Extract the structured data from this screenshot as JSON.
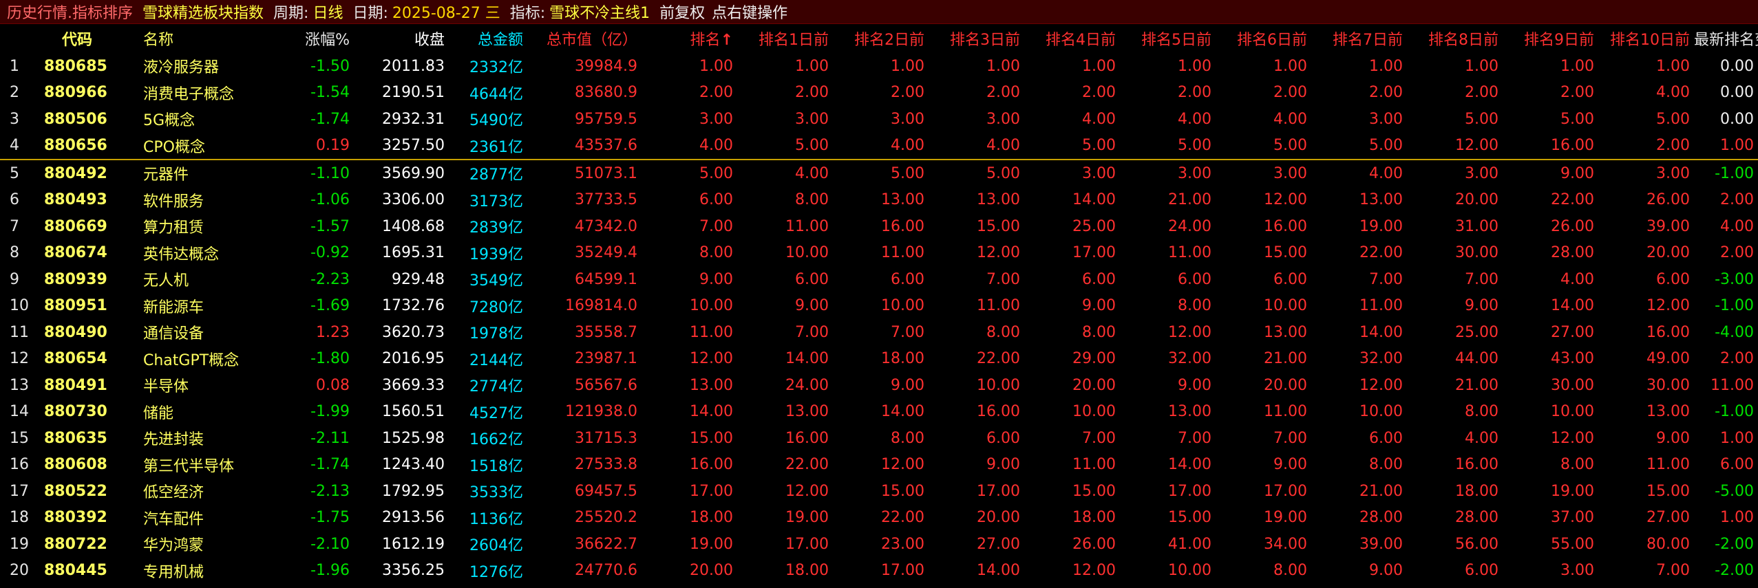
{
  "titlebar": {
    "path": "历史行情.指标排序",
    "block": "雪球精选板块指数",
    "period_label": "周期:",
    "period_value": "日线",
    "date_label": "日期:",
    "date_value": "2025-08-27 三",
    "indicator_label": "指标:",
    "indicator_value": "雪球不冷主线1",
    "adjust": "前复权",
    "hint": "点右键操作"
  },
  "columns": {
    "code": "代码",
    "name": "名称",
    "change": "涨幅%",
    "close": "收盘",
    "amount": "总金额",
    "mcap": "总市值（亿）",
    "rank": "排名",
    "rank_sort_icon": "↑",
    "r1": "排名1日前",
    "r2": "排名2日前",
    "r3": "排名3日前",
    "r4": "排名4日前",
    "r5": "排名5日前",
    "r6": "排名6日前",
    "r7": "排名7日前",
    "r8": "排名8日前",
    "r9": "排名9日前",
    "r10": "排名10日前",
    "rank_change": "最新排名变动"
  },
  "rows": [
    {
      "idx": "1",
      "code": "880685",
      "name": "液冷服务器",
      "chg": "-1.50",
      "close": "2011.83",
      "amt": "2332亿",
      "cap": "39984.9",
      "rank": "1.00",
      "r1": "1.00",
      "r2": "1.00",
      "r3": "1.00",
      "r4": "1.00",
      "r5": "1.00",
      "r6": "1.00",
      "r7": "1.00",
      "r8": "1.00",
      "r9": "1.00",
      "r10": "1.00",
      "delta": "0.00"
    },
    {
      "idx": "2",
      "code": "880966",
      "name": "消费电子概念",
      "chg": "-1.54",
      "close": "2190.51",
      "amt": "4644亿",
      "cap": "83680.9",
      "rank": "2.00",
      "r1": "2.00",
      "r2": "2.00",
      "r3": "2.00",
      "r4": "2.00",
      "r5": "2.00",
      "r6": "2.00",
      "r7": "2.00",
      "r8": "2.00",
      "r9": "2.00",
      "r10": "4.00",
      "delta": "0.00"
    },
    {
      "idx": "3",
      "code": "880506",
      "name": "5G概念",
      "chg": "-1.74",
      "close": "2932.31",
      "amt": "5490亿",
      "cap": "95759.5",
      "rank": "3.00",
      "r1": "3.00",
      "r2": "3.00",
      "r3": "3.00",
      "r4": "4.00",
      "r5": "4.00",
      "r6": "4.00",
      "r7": "3.00",
      "r8": "5.00",
      "r9": "5.00",
      "r10": "5.00",
      "delta": "0.00"
    },
    {
      "idx": "4",
      "code": "880656",
      "name": "CPO概念",
      "chg": "0.19",
      "close": "3257.50",
      "amt": "2361亿",
      "cap": "43537.6",
      "rank": "4.00",
      "r1": "5.00",
      "r2": "4.00",
      "r3": "4.00",
      "r4": "5.00",
      "r5": "5.00",
      "r6": "5.00",
      "r7": "5.00",
      "r8": "12.00",
      "r9": "16.00",
      "r10": "2.00",
      "delta": "1.00"
    },
    {
      "idx": "5",
      "code": "880492",
      "name": "元器件",
      "chg": "-1.10",
      "close": "3569.90",
      "amt": "2877亿",
      "cap": "51073.1",
      "rank": "5.00",
      "r1": "4.00",
      "r2": "5.00",
      "r3": "5.00",
      "r4": "3.00",
      "r5": "3.00",
      "r6": "3.00",
      "r7": "4.00",
      "r8": "3.00",
      "r9": "9.00",
      "r10": "3.00",
      "delta": "-1.00"
    },
    {
      "idx": "6",
      "code": "880493",
      "name": "软件服务",
      "chg": "-1.06",
      "close": "3306.00",
      "amt": "3173亿",
      "cap": "37733.5",
      "rank": "6.00",
      "r1": "8.00",
      "r2": "13.00",
      "r3": "13.00",
      "r4": "14.00",
      "r5": "21.00",
      "r6": "12.00",
      "r7": "13.00",
      "r8": "20.00",
      "r9": "22.00",
      "r10": "26.00",
      "delta": "2.00"
    },
    {
      "idx": "7",
      "code": "880669",
      "name": "算力租赁",
      "chg": "-1.57",
      "close": "1408.68",
      "amt": "2839亿",
      "cap": "47342.0",
      "rank": "7.00",
      "r1": "11.00",
      "r2": "16.00",
      "r3": "15.00",
      "r4": "25.00",
      "r5": "24.00",
      "r6": "16.00",
      "r7": "19.00",
      "r8": "31.00",
      "r9": "26.00",
      "r10": "39.00",
      "delta": "4.00"
    },
    {
      "idx": "8",
      "code": "880674",
      "name": "英伟达概念",
      "chg": "-0.92",
      "close": "1695.31",
      "amt": "1939亿",
      "cap": "35249.4",
      "rank": "8.00",
      "r1": "10.00",
      "r2": "11.00",
      "r3": "12.00",
      "r4": "17.00",
      "r5": "11.00",
      "r6": "15.00",
      "r7": "22.00",
      "r8": "30.00",
      "r9": "28.00",
      "r10": "20.00",
      "delta": "2.00"
    },
    {
      "idx": "9",
      "code": "880939",
      "name": "无人机",
      "chg": "-2.23",
      "close": "929.48",
      "amt": "3549亿",
      "cap": "64599.1",
      "rank": "9.00",
      "r1": "6.00",
      "r2": "6.00",
      "r3": "7.00",
      "r4": "6.00",
      "r5": "6.00",
      "r6": "6.00",
      "r7": "7.00",
      "r8": "7.00",
      "r9": "4.00",
      "r10": "6.00",
      "delta": "-3.00"
    },
    {
      "idx": "10",
      "code": "880951",
      "name": "新能源车",
      "chg": "-1.69",
      "close": "1732.76",
      "amt": "7280亿",
      "cap": "169814.0",
      "rank": "10.00",
      "r1": "9.00",
      "r2": "10.00",
      "r3": "11.00",
      "r4": "9.00",
      "r5": "8.00",
      "r6": "10.00",
      "r7": "11.00",
      "r8": "9.00",
      "r9": "14.00",
      "r10": "12.00",
      "delta": "-1.00"
    },
    {
      "idx": "11",
      "code": "880490",
      "name": "通信设备",
      "chg": "1.23",
      "close": "3620.73",
      "amt": "1978亿",
      "cap": "35558.7",
      "rank": "11.00",
      "r1": "7.00",
      "r2": "7.00",
      "r3": "8.00",
      "r4": "8.00",
      "r5": "12.00",
      "r6": "13.00",
      "r7": "14.00",
      "r8": "25.00",
      "r9": "27.00",
      "r10": "16.00",
      "delta": "-4.00"
    },
    {
      "idx": "12",
      "code": "880654",
      "name": "ChatGPT概念",
      "chg": "-1.80",
      "close": "2016.95",
      "amt": "2144亿",
      "cap": "23987.1",
      "rank": "12.00",
      "r1": "14.00",
      "r2": "18.00",
      "r3": "22.00",
      "r4": "29.00",
      "r5": "32.00",
      "r6": "21.00",
      "r7": "32.00",
      "r8": "44.00",
      "r9": "43.00",
      "r10": "49.00",
      "delta": "2.00"
    },
    {
      "idx": "13",
      "code": "880491",
      "name": "半导体",
      "chg": "0.08",
      "close": "3669.33",
      "amt": "2774亿",
      "cap": "56567.6",
      "rank": "13.00",
      "r1": "24.00",
      "r2": "9.00",
      "r3": "10.00",
      "r4": "20.00",
      "r5": "9.00",
      "r6": "20.00",
      "r7": "12.00",
      "r8": "21.00",
      "r9": "30.00",
      "r10": "30.00",
      "delta": "11.00"
    },
    {
      "idx": "14",
      "code": "880730",
      "name": "储能",
      "chg": "-1.99",
      "close": "1560.51",
      "amt": "4527亿",
      "cap": "121938.0",
      "rank": "14.00",
      "r1": "13.00",
      "r2": "14.00",
      "r3": "16.00",
      "r4": "10.00",
      "r5": "13.00",
      "r6": "11.00",
      "r7": "10.00",
      "r8": "8.00",
      "r9": "10.00",
      "r10": "13.00",
      "delta": "-1.00"
    },
    {
      "idx": "15",
      "code": "880635",
      "name": "先进封装",
      "chg": "-2.11",
      "close": "1525.98",
      "amt": "1662亿",
      "cap": "31715.3",
      "rank": "15.00",
      "r1": "16.00",
      "r2": "8.00",
      "r3": "6.00",
      "r4": "7.00",
      "r5": "7.00",
      "r6": "7.00",
      "r7": "6.00",
      "r8": "4.00",
      "r9": "12.00",
      "r10": "9.00",
      "delta": "1.00"
    },
    {
      "idx": "16",
      "code": "880608",
      "name": "第三代半导体",
      "chg": "-1.74",
      "close": "1243.40",
      "amt": "1518亿",
      "cap": "27533.8",
      "rank": "16.00",
      "r1": "22.00",
      "r2": "12.00",
      "r3": "9.00",
      "r4": "11.00",
      "r5": "14.00",
      "r6": "9.00",
      "r7": "8.00",
      "r8": "16.00",
      "r9": "8.00",
      "r10": "11.00",
      "delta": "6.00"
    },
    {
      "idx": "17",
      "code": "880522",
      "name": "低空经济",
      "chg": "-2.13",
      "close": "1792.95",
      "amt": "3533亿",
      "cap": "69457.5",
      "rank": "17.00",
      "r1": "12.00",
      "r2": "15.00",
      "r3": "17.00",
      "r4": "15.00",
      "r5": "17.00",
      "r6": "17.00",
      "r7": "21.00",
      "r8": "18.00",
      "r9": "19.00",
      "r10": "15.00",
      "delta": "-5.00"
    },
    {
      "idx": "18",
      "code": "880392",
      "name": "汽车配件",
      "chg": "-1.75",
      "close": "2913.56",
      "amt": "1136亿",
      "cap": "25520.2",
      "rank": "18.00",
      "r1": "19.00",
      "r2": "22.00",
      "r3": "20.00",
      "r4": "18.00",
      "r5": "15.00",
      "r6": "19.00",
      "r7": "28.00",
      "r8": "28.00",
      "r9": "37.00",
      "r10": "27.00",
      "delta": "1.00"
    },
    {
      "idx": "19",
      "code": "880722",
      "name": "华为鸿蒙",
      "chg": "-2.10",
      "close": "1612.19",
      "amt": "2604亿",
      "cap": "36622.7",
      "rank": "19.00",
      "r1": "17.00",
      "r2": "23.00",
      "r3": "27.00",
      "r4": "26.00",
      "r5": "41.00",
      "r6": "34.00",
      "r7": "39.00",
      "r8": "56.00",
      "r9": "55.00",
      "r10": "80.00",
      "delta": "-2.00"
    },
    {
      "idx": "20",
      "code": "880445",
      "name": "专用机械",
      "chg": "-1.96",
      "close": "3356.25",
      "amt": "1276亿",
      "cap": "24770.6",
      "rank": "20.00",
      "r1": "18.00",
      "r2": "17.00",
      "r3": "14.00",
      "r4": "12.00",
      "r5": "10.00",
      "r6": "8.00",
      "r7": "9.00",
      "r8": "6.00",
      "r9": "3.00",
      "r10": "7.00",
      "delta": "-2.00"
    }
  ],
  "colors": {
    "background": "#000000",
    "titlebar": "#3a0000",
    "up": "#ff3030",
    "down": "#00e000",
    "code_name": "#ffff60",
    "amount": "#00e5ff",
    "separator": "#c8a000"
  }
}
